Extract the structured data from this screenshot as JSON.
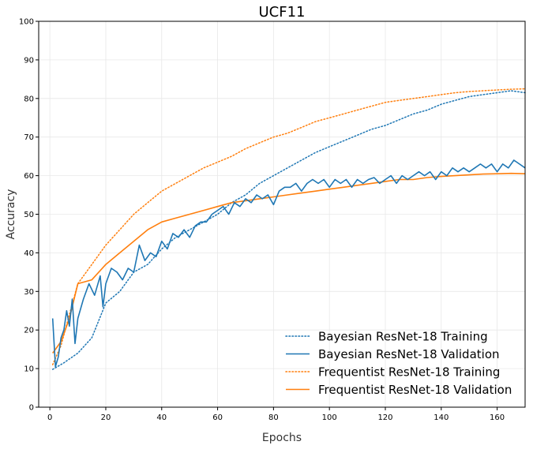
{
  "chart_data": {
    "type": "line",
    "title": "UCF11",
    "xlabel": "Epochs",
    "ylabel": "Accuracy",
    "xlim": [
      -4,
      170
    ],
    "ylim": [
      0,
      100
    ],
    "xticks": [
      0,
      20,
      40,
      60,
      80,
      100,
      120,
      140,
      160
    ],
    "yticks": [
      0,
      10,
      20,
      30,
      40,
      50,
      60,
      70,
      80,
      90,
      100
    ],
    "grid": true,
    "legend_position": "bottom-right",
    "series": [
      {
        "name": "Bayesian ResNet-18 Training",
        "color": "#1f77b4",
        "style": "dotted",
        "points": [
          [
            1,
            9.8
          ],
          [
            5,
            11.5
          ],
          [
            10,
            14
          ],
          [
            15,
            18
          ],
          [
            20,
            27
          ],
          [
            25,
            30
          ],
          [
            30,
            35
          ],
          [
            35,
            37
          ],
          [
            40,
            41
          ],
          [
            45,
            44
          ],
          [
            50,
            46
          ],
          [
            55,
            48
          ],
          [
            60,
            50
          ],
          [
            65,
            53
          ],
          [
            70,
            55
          ],
          [
            75,
            58
          ],
          [
            80,
            60
          ],
          [
            85,
            62
          ],
          [
            90,
            64
          ],
          [
            95,
            66
          ],
          [
            100,
            67.5
          ],
          [
            105,
            69
          ],
          [
            110,
            70.5
          ],
          [
            115,
            72
          ],
          [
            120,
            73
          ],
          [
            125,
            74.5
          ],
          [
            130,
            76
          ],
          [
            135,
            77
          ],
          [
            140,
            78.5
          ],
          [
            145,
            79.5
          ],
          [
            150,
            80.5
          ],
          [
            155,
            81
          ],
          [
            160,
            81.5
          ],
          [
            165,
            82
          ],
          [
            170,
            81.5
          ]
        ]
      },
      {
        "name": "Bayesian ResNet-18 Validation",
        "color": "#1f77b4",
        "style": "solid",
        "points": [
          [
            1,
            23
          ],
          [
            2,
            10.5
          ],
          [
            3,
            13
          ],
          [
            4,
            18
          ],
          [
            5,
            20
          ],
          [
            6,
            25
          ],
          [
            7,
            21
          ],
          [
            8,
            28
          ],
          [
            9,
            16.5
          ],
          [
            10,
            23
          ],
          [
            12,
            28
          ],
          [
            14,
            32
          ],
          [
            16,
            29
          ],
          [
            18,
            34
          ],
          [
            19,
            26
          ],
          [
            20,
            32
          ],
          [
            22,
            36
          ],
          [
            24,
            35
          ],
          [
            26,
            33
          ],
          [
            28,
            36
          ],
          [
            30,
            35
          ],
          [
            32,
            42
          ],
          [
            34,
            38
          ],
          [
            36,
            40
          ],
          [
            38,
            39
          ],
          [
            40,
            43
          ],
          [
            42,
            41
          ],
          [
            44,
            45
          ],
          [
            46,
            44
          ],
          [
            48,
            46
          ],
          [
            50,
            44
          ],
          [
            52,
            47
          ],
          [
            54,
            48
          ],
          [
            56,
            48
          ],
          [
            58,
            50
          ],
          [
            60,
            51
          ],
          [
            62,
            52
          ],
          [
            64,
            50
          ],
          [
            66,
            53
          ],
          [
            68,
            52
          ],
          [
            70,
            54
          ],
          [
            72,
            53
          ],
          [
            74,
            55
          ],
          [
            76,
            54
          ],
          [
            78,
            55
          ],
          [
            80,
            52.5
          ],
          [
            82,
            56
          ],
          [
            84,
            57
          ],
          [
            86,
            57
          ],
          [
            88,
            58
          ],
          [
            90,
            56
          ],
          [
            92,
            58
          ],
          [
            94,
            59
          ],
          [
            96,
            58
          ],
          [
            98,
            59
          ],
          [
            100,
            57
          ],
          [
            102,
            59
          ],
          [
            104,
            58
          ],
          [
            106,
            59
          ],
          [
            108,
            57
          ],
          [
            110,
            59
          ],
          [
            112,
            58
          ],
          [
            114,
            59
          ],
          [
            116,
            59.5
          ],
          [
            118,
            58
          ],
          [
            120,
            59
          ],
          [
            122,
            60
          ],
          [
            124,
            58
          ],
          [
            126,
            60
          ],
          [
            128,
            59
          ],
          [
            130,
            60
          ],
          [
            132,
            61
          ],
          [
            134,
            60
          ],
          [
            136,
            61
          ],
          [
            138,
            59
          ],
          [
            140,
            61
          ],
          [
            142,
            60
          ],
          [
            144,
            62
          ],
          [
            146,
            61
          ],
          [
            148,
            62
          ],
          [
            150,
            61
          ],
          [
            152,
            62
          ],
          [
            154,
            63
          ],
          [
            156,
            62
          ],
          [
            158,
            63
          ],
          [
            160,
            61
          ],
          [
            162,
            63
          ],
          [
            164,
            62
          ],
          [
            166,
            64
          ],
          [
            168,
            63
          ],
          [
            170,
            62
          ]
        ]
      },
      {
        "name": "Frequentist ResNet-18 Training",
        "color": "#ff7f0e",
        "style": "dotted",
        "points": [
          [
            1,
            11
          ],
          [
            4,
            16
          ],
          [
            7,
            24
          ],
          [
            10,
            32
          ],
          [
            15,
            37
          ],
          [
            20,
            42
          ],
          [
            25,
            46
          ],
          [
            30,
            50
          ],
          [
            35,
            53
          ],
          [
            40,
            56
          ],
          [
            45,
            58
          ],
          [
            50,
            60
          ],
          [
            55,
            62
          ],
          [
            60,
            63.5
          ],
          [
            65,
            65
          ],
          [
            70,
            67
          ],
          [
            75,
            68.5
          ],
          [
            80,
            70
          ],
          [
            85,
            71
          ],
          [
            90,
            72.5
          ],
          [
            95,
            74
          ],
          [
            100,
            75
          ],
          [
            105,
            76
          ],
          [
            110,
            77
          ],
          [
            115,
            78
          ],
          [
            120,
            79
          ],
          [
            125,
            79.5
          ],
          [
            130,
            80
          ],
          [
            135,
            80.5
          ],
          [
            140,
            81
          ],
          [
            145,
            81.5
          ],
          [
            150,
            81.8
          ],
          [
            155,
            82
          ],
          [
            160,
            82.2
          ],
          [
            165,
            82.4
          ],
          [
            170,
            82.5
          ]
        ]
      },
      {
        "name": "Frequentist ResNet-18 Validation",
        "color": "#ff7f0e",
        "style": "solid",
        "points": [
          [
            1,
            14
          ],
          [
            4,
            17
          ],
          [
            7,
            23
          ],
          [
            10,
            32
          ],
          [
            15,
            33
          ],
          [
            20,
            37
          ],
          [
            25,
            40
          ],
          [
            30,
            43
          ],
          [
            35,
            46
          ],
          [
            40,
            48
          ],
          [
            45,
            49
          ],
          [
            50,
            50
          ],
          [
            55,
            51
          ],
          [
            60,
            52
          ],
          [
            65,
            53
          ],
          [
            70,
            53.5
          ],
          [
            75,
            54
          ],
          [
            80,
            54.5
          ],
          [
            85,
            55
          ],
          [
            90,
            55.5
          ],
          [
            95,
            56
          ],
          [
            100,
            56.5
          ],
          [
            105,
            57
          ],
          [
            110,
            57.5
          ],
          [
            115,
            58
          ],
          [
            120,
            58.5
          ],
          [
            125,
            59
          ],
          [
            130,
            59
          ],
          [
            135,
            59.5
          ],
          [
            140,
            59.8
          ],
          [
            145,
            60
          ],
          [
            150,
            60.2
          ],
          [
            155,
            60.4
          ],
          [
            160,
            60.5
          ],
          [
            165,
            60.6
          ],
          [
            170,
            60.5
          ]
        ]
      }
    ]
  }
}
